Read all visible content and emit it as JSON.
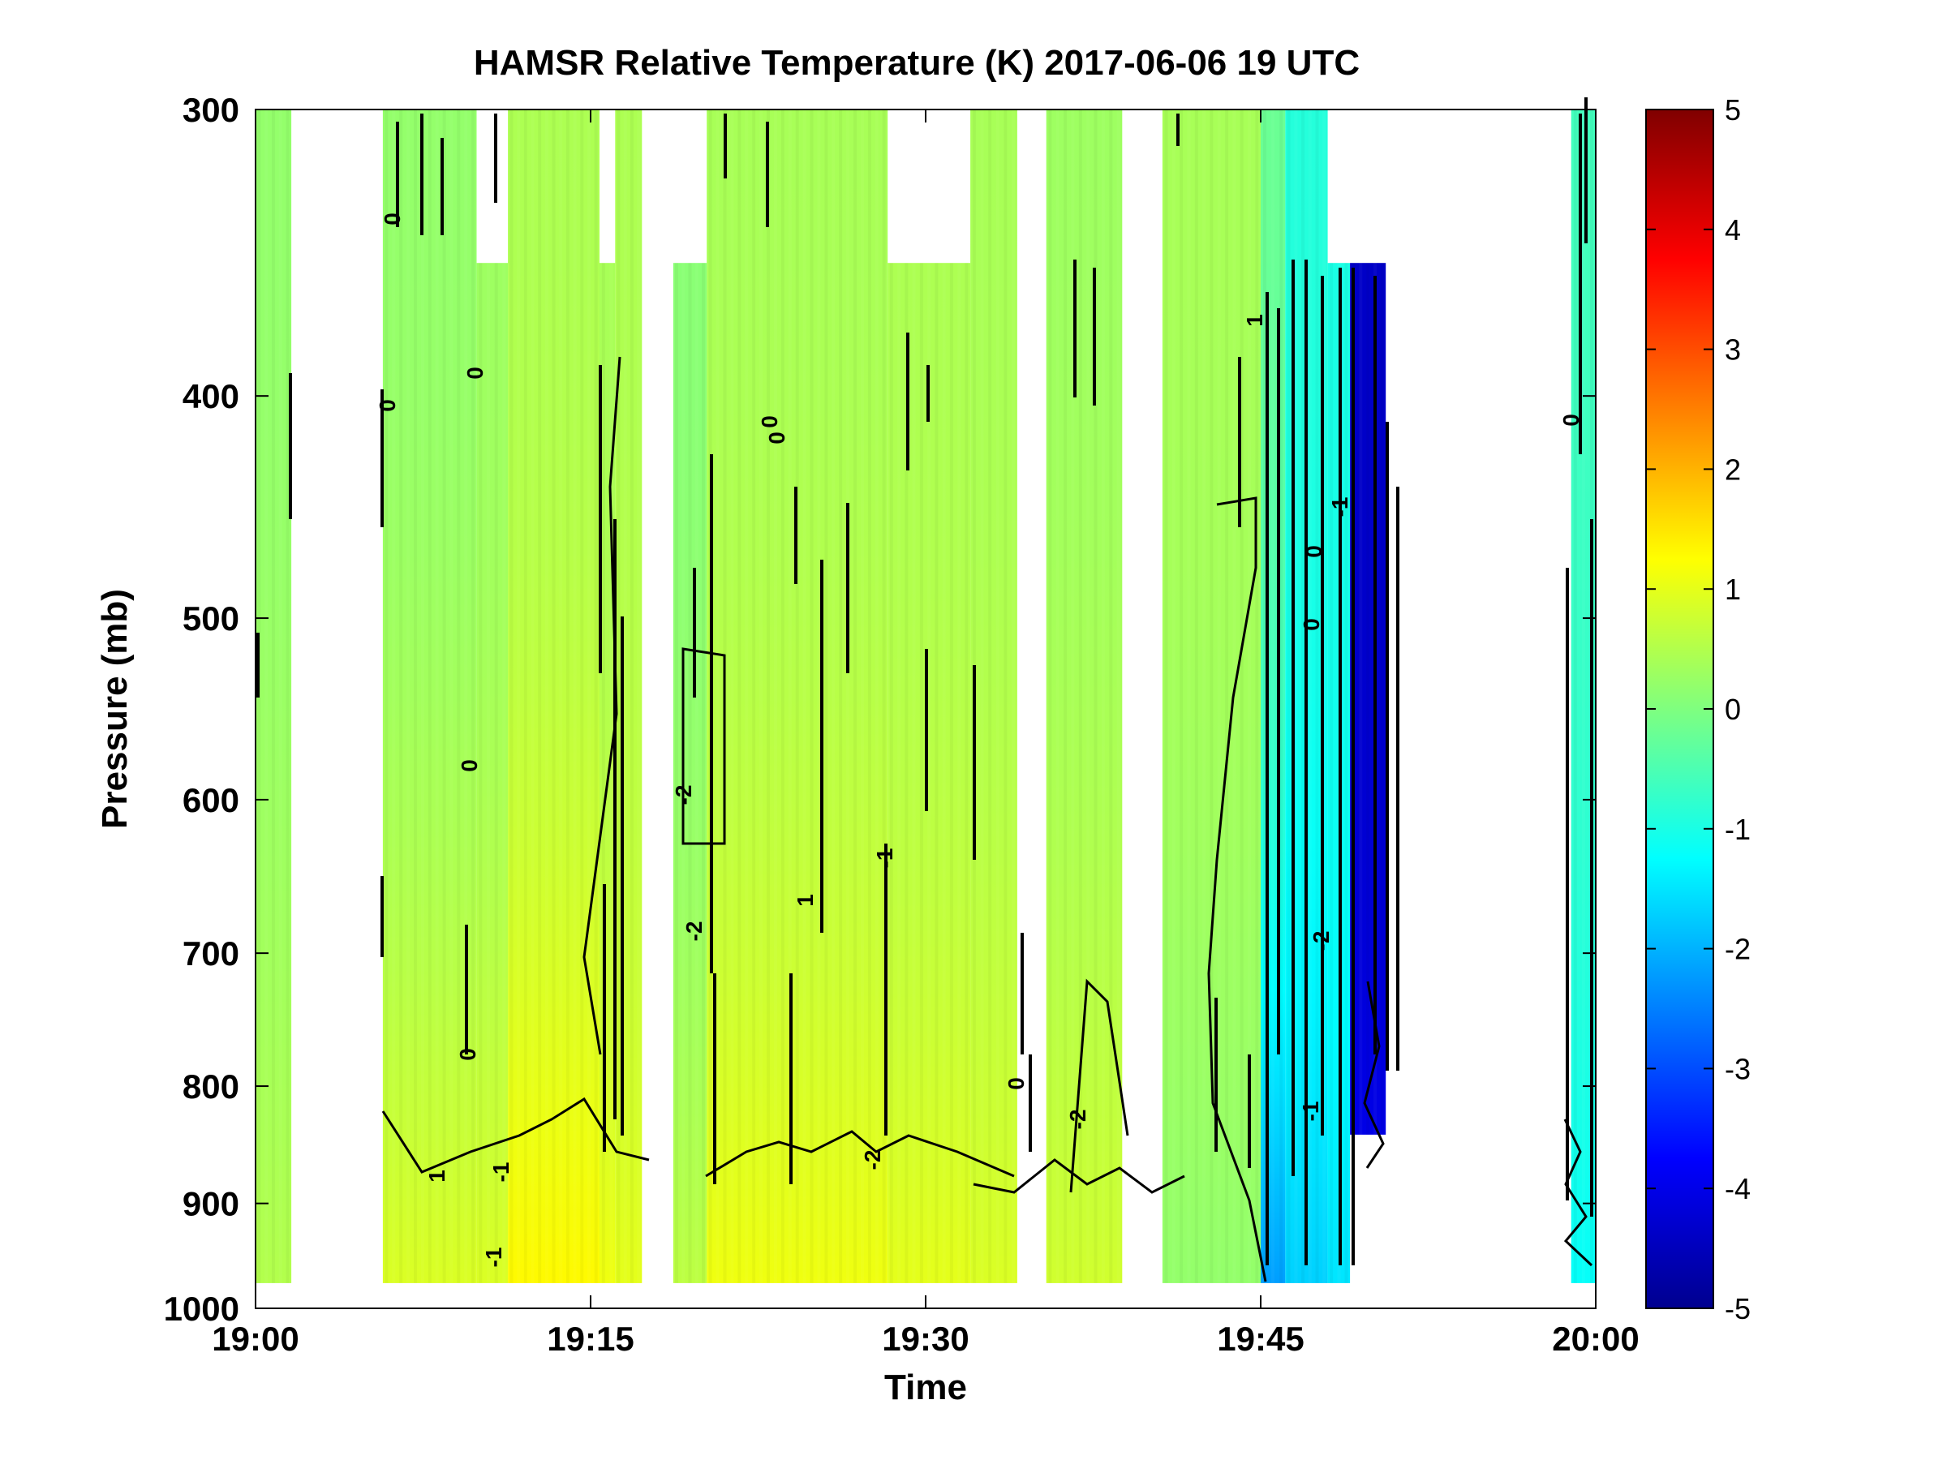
{
  "chart_data": {
    "type": "heatmap",
    "title": "HAMSR  Relative Temperature (K) 2017-06-06 19 UTC",
    "xlabel": "Time",
    "ylabel": "Pressure (mb)",
    "x_ticks": [
      "19:00",
      "19:15",
      "19:30",
      "19:45",
      "20:00"
    ],
    "x_range_minutes": [
      0,
      60
    ],
    "y_ticks": [
      "300",
      "400",
      "500",
      "600",
      "700",
      "800",
      "900",
      "1000"
    ],
    "y_range": [
      300,
      1000
    ],
    "y_scale": "log",
    "y_reversed": true,
    "colorbar": {
      "ticks": [
        "5",
        "4",
        "3",
        "2",
        "1",
        "0",
        "-1",
        "-2",
        "-3",
        "-4",
        "-5"
      ],
      "range": [
        -5,
        5
      ],
      "colormap": "jet"
    },
    "grid": false,
    "contour_line_color": "#000000",
    "data_segments": [
      {
        "start_min": 0.0,
        "end_min": 1.6,
        "top_mb": 300,
        "bottom_mb": 975,
        "upper_value": 0.2,
        "lower_value": 0.5
      },
      {
        "start_min": 5.7,
        "end_min": 9.9,
        "top_mb": 300,
        "bottom_mb": 975,
        "upper_value": 0.2,
        "lower_value": 0.9,
        "clear_top_start_min": 5.7,
        "clear_top_end_min": 6.3
      },
      {
        "start_min": 9.9,
        "end_min": 11.3,
        "top_mb": 350,
        "bottom_mb": 975,
        "upper_value": 0.3,
        "lower_value": 0.9
      },
      {
        "start_min": 11.3,
        "end_min": 15.4,
        "top_mb": 300,
        "bottom_mb": 975,
        "upper_value": 0.45,
        "lower_value": 1.3
      },
      {
        "start_min": 15.4,
        "end_min": 16.1,
        "top_mb": 350,
        "bottom_mb": 975,
        "upper_value": 0.4,
        "lower_value": 1.1
      },
      {
        "start_min": 16.1,
        "end_min": 17.3,
        "top_mb": 300,
        "bottom_mb": 975,
        "upper_value": 0.45,
        "lower_value": 1.0
      },
      {
        "start_min": 18.7,
        "end_min": 20.2,
        "top_mb": 350,
        "bottom_mb": 975,
        "upper_value": 0.1,
        "lower_value": 0.6
      },
      {
        "start_min": 20.2,
        "end_min": 28.3,
        "top_mb": 300,
        "bottom_mb": 975,
        "upper_value": 0.4,
        "lower_value": 1.1
      },
      {
        "start_min": 28.3,
        "end_min": 32.0,
        "top_mb": 350,
        "bottom_mb": 975,
        "upper_value": 0.45,
        "lower_value": 1.0
      },
      {
        "start_min": 32.0,
        "end_min": 34.1,
        "top_mb": 300,
        "bottom_mb": 975,
        "upper_value": 0.4,
        "lower_value": 0.9
      },
      {
        "start_min": 35.4,
        "end_min": 38.8,
        "top_mb": 300,
        "bottom_mb": 975,
        "upper_value": 0.3,
        "lower_value": 0.8
      },
      {
        "start_min": 40.6,
        "end_min": 45.0,
        "top_mb": 300,
        "bottom_mb": 975,
        "upper_value": 0.4,
        "lower_value": 0.2
      },
      {
        "start_min": 45.0,
        "end_min": 46.1,
        "top_mb": 300,
        "bottom_mb": 975,
        "upper_value": -0.2,
        "lower_value": -2.2
      },
      {
        "start_min": 46.1,
        "end_min": 48.0,
        "top_mb": 300,
        "bottom_mb": 975,
        "upper_value": -0.9,
        "lower_value": -1.7
      },
      {
        "start_min": 48.0,
        "end_min": 49.0,
        "top_mb": 350,
        "bottom_mb": 975,
        "upper_value": -1.0,
        "lower_value": -1.5
      },
      {
        "start_min": 49.0,
        "end_min": 50.6,
        "top_mb": 350,
        "bottom_mb": 840,
        "upper_value": -4.3,
        "lower_value": -4.0
      },
      {
        "start_min": 58.9,
        "end_min": 60.0,
        "top_mb": 300,
        "bottom_mb": 975,
        "upper_value": -0.6,
        "lower_value": -1.2
      }
    ],
    "contour_labels": [
      "0",
      "0",
      "0",
      "0",
      "0",
      "1",
      "-1",
      "-1",
      "-2",
      "-2",
      "0",
      "0",
      "1",
      "-1",
      "-2",
      "-2",
      "0",
      "1",
      "0",
      "0",
      "0",
      "-1",
      "-2",
      "-1"
    ]
  }
}
